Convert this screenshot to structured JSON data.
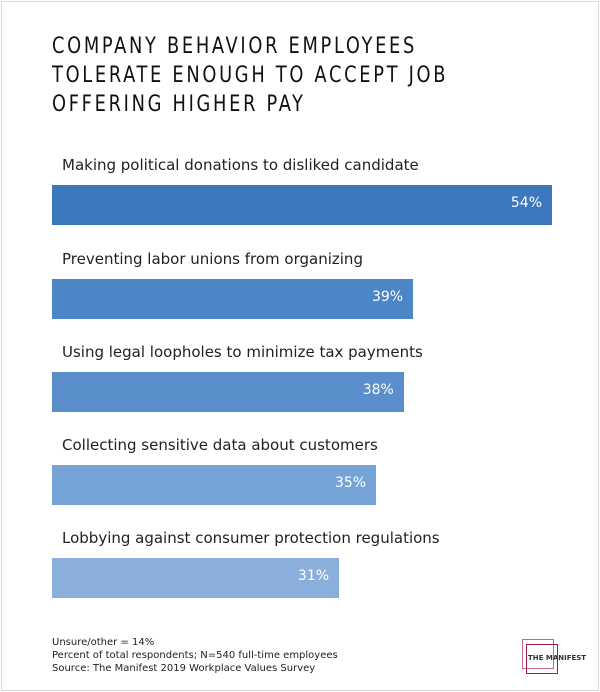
{
  "chart_data": {
    "type": "bar",
    "orientation": "horizontal",
    "title": "COMPANY BEHAVIOR EMPLOYEES TOLERATE ENOUGH TO ACCEPT JOB OFFERING HIGHER PAY",
    "categories": [
      "Making political donations to disliked candidate",
      "Preventing labor unions from organizing",
      "Using legal loopholes to minimize tax payments",
      "Collecting sensitive data about customers",
      "Lobbying against consumer protection regulations"
    ],
    "values": [
      54,
      39,
      38,
      35,
      31
    ],
    "value_labels": [
      "54%",
      "39%",
      "38%",
      "35%",
      "31%"
    ],
    "colors": [
      "#3b78be",
      "#4c86c6",
      "#5b8fcb",
      "#76a3d5",
      "#8aafdb"
    ],
    "grid": false
  },
  "notes": [
    "Unsure/other = 14%",
    "Percent of total respondents; N=540 full-time employees",
    "Source: The Manifest 2019 Workplace Values Survey"
  ],
  "logo": {
    "text": "THE MANIFEST"
  }
}
